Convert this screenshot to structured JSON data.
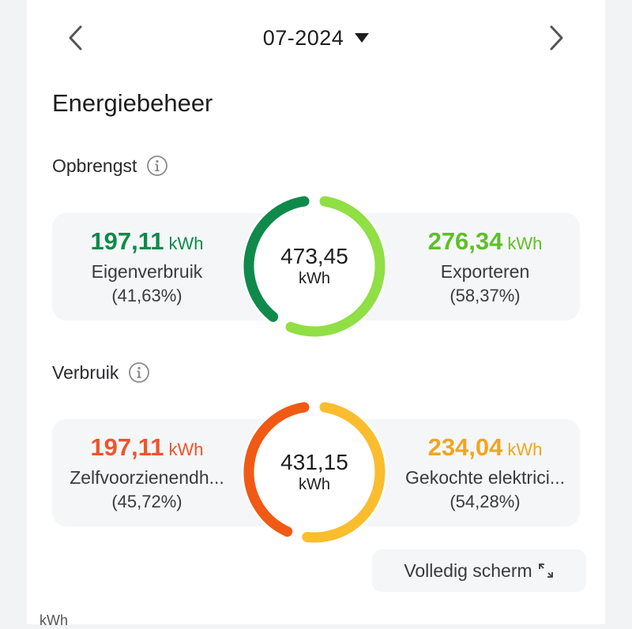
{
  "header": {
    "period": "07-2024",
    "prev_label": "Vorige maand",
    "next_label": "Volgende maand"
  },
  "page": {
    "title": "Energiebeheer"
  },
  "production": {
    "title": "Opbrengst",
    "total_value": "473,45",
    "total_unit": "kWh",
    "left": {
      "value": "197,11",
      "unit": "kWh",
      "label": "Eigenverbruik",
      "percent": "(41,63%)",
      "percent_value": 41.63,
      "color": "#0f8a4a"
    },
    "right": {
      "value": "276,34",
      "unit": "kWh",
      "label": "Exporteren",
      "percent": "(58,37%)",
      "percent_value": 58.37,
      "color": "#5fbf26"
    },
    "ring_colors": {
      "left": "#0f8a4a",
      "right": "#8fdf45"
    }
  },
  "consumption": {
    "title": "Verbruik",
    "total_value": "431,15",
    "total_unit": "kWh",
    "left": {
      "value": "197,11",
      "unit": "kWh",
      "label": "Zelfvoorzienendh...",
      "percent": "(45,72%)",
      "percent_value": 45.72,
      "color": "#f0542a"
    },
    "right": {
      "value": "234,04",
      "unit": "kWh",
      "label": "Gekochte elektrici...",
      "percent": "(54,28%)",
      "percent_value": 54.28,
      "color": "#f0a520"
    },
    "ring_colors": {
      "left": "#f05a14",
      "right": "#f9bd2e"
    }
  },
  "fullscreen": {
    "label": "Volledig scherm"
  },
  "chart_axis": {
    "unit": "kWh"
  }
}
